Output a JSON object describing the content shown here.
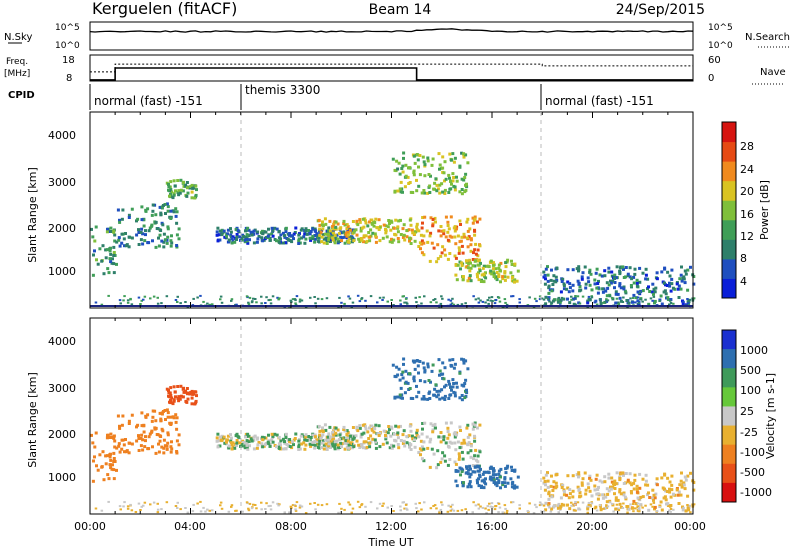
{
  "header": {
    "station": "Kerguelen (fitACF)",
    "beam": "Beam 14",
    "date": "24/Sep/2015"
  },
  "sky_panel": {
    "left_label": "N.Sky",
    "left_ticks": [
      "10^5",
      "10^0"
    ],
    "right_ticks": [
      "10^5",
      "10^0"
    ],
    "right_label": "N.Search"
  },
  "freq_panel": {
    "left_label_1": "Freq.",
    "left_label_2": "[MHz]",
    "left_ticks": [
      "18",
      "8"
    ],
    "right_ticks": [
      "60",
      "0"
    ],
    "right_label": "Nave"
  },
  "cpid": {
    "label": "CPID",
    "segments": [
      {
        "label": "normal (fast) -151",
        "start_h": 0,
        "end_h": 6
      },
      {
        "label": "themis 3300",
        "start_h": 6,
        "end_h": 18
      },
      {
        "label": "normal (fast) -151",
        "start_h": 18,
        "end_h": 24
      }
    ]
  },
  "x_axis": {
    "label": "Time UT",
    "ticks": [
      "00:00",
      "04:00",
      "08:00",
      "12:00",
      "16:00",
      "20:00",
      "00:00"
    ]
  },
  "power_panel": {
    "ylabel": "Slant Range [km]",
    "yticks": [
      "4000",
      "3000",
      "2000",
      "1000"
    ],
    "colorbar_label": "Power [dB]",
    "colorbar_ticks": [
      "28",
      "24",
      "20",
      "16",
      "12",
      "8",
      "4"
    ],
    "colors": [
      "#0a1fd8",
      "#1f4fbf",
      "#2e7f6a",
      "#3f9e57",
      "#7fbf3a",
      "#d9c322",
      "#f08a1e",
      "#e64a14",
      "#d61410"
    ]
  },
  "velocity_panel": {
    "ylabel": "Slant Range [km]",
    "yticks": [
      "4000",
      "3000",
      "2000",
      "1000"
    ],
    "colorbar_label": "Velocity [m s-1]",
    "colorbar_ticks": [
      "1000",
      "500",
      "100",
      "25",
      "-25",
      "-100",
      "-500",
      "-1000"
    ],
    "colors": [
      "#1a30d0",
      "#2e6fb0",
      "#3f9a5a",
      "#66c83a",
      "#c8c8c8",
      "#e8b030",
      "#ee8020",
      "#e85018",
      "#d81010"
    ]
  },
  "chart_data": {
    "type": "heatmap",
    "title": "Kerguelen (fitACF) Beam 14 24/Sep/2015",
    "xlabel": "Time UT",
    "ylabel": "Slant Range [km]",
    "xlim_hours": [
      0,
      24
    ],
    "ylim_km": [
      180,
      4500
    ],
    "series": [
      {
        "name": "Power [dB]",
        "clim": [
          0,
          30
        ]
      },
      {
        "name": "Velocity [m s-1]",
        "clim": [
          -1000,
          1000
        ]
      }
    ],
    "echo_regions": [
      {
        "t": [
          0.0,
          1.0
        ],
        "r": [
          900,
          2000
        ],
        "power_db": 10,
        "velocity": -300
      },
      {
        "t": [
          1.0,
          3.5
        ],
        "r": [
          1500,
          2500
        ],
        "power_db": 8,
        "velocity": -250
      },
      {
        "t": [
          3.0,
          4.2
        ],
        "r": [
          2600,
          3000
        ],
        "power_db": 12,
        "velocity": -700
      },
      {
        "t": [
          5.0,
          10.5
        ],
        "r": [
          1600,
          1950
        ],
        "power_db": 6,
        "velocity": 0
      },
      {
        "t": [
          9.0,
          13.0
        ],
        "r": [
          1600,
          2150
        ],
        "power_db": 18,
        "velocity": 0
      },
      {
        "t": [
          12.0,
          15.0
        ],
        "r": [
          2700,
          3600
        ],
        "power_db": 14,
        "velocity": 150
      },
      {
        "t": [
          13.0,
          15.5
        ],
        "r": [
          1200,
          2200
        ],
        "power_db": 22,
        "velocity": 0
      },
      {
        "t": [
          14.5,
          17.0
        ],
        "r": [
          750,
          1250
        ],
        "power_db": 16,
        "velocity": 150
      },
      {
        "t": [
          18.0,
          24.0
        ],
        "r": [
          250,
          1100
        ],
        "power_db": 6,
        "velocity": -50
      }
    ],
    "grid": false,
    "legend_placement": "right colorbars"
  }
}
